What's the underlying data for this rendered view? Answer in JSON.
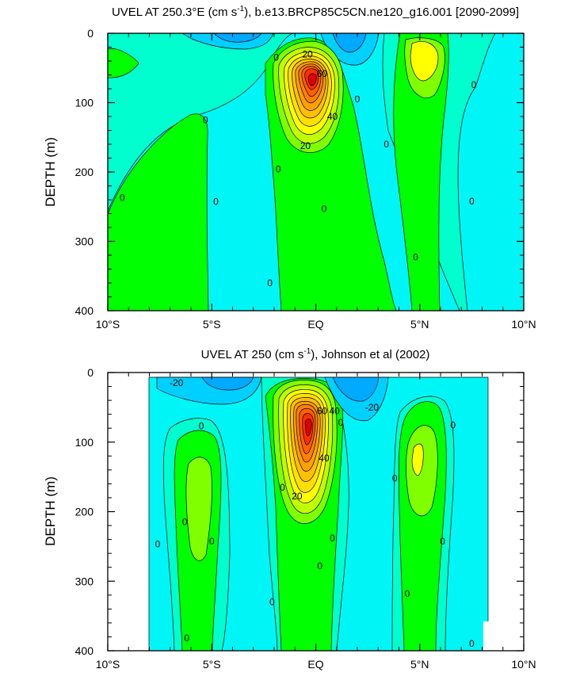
{
  "chart_data": [
    {
      "type": "contour",
      "title": "UVEL AT 250.3°E (cm s",
      "title_sup": "-1",
      "title_rest": "), b.e13.BRCP85C5CN.ne120_g16.001 [2090-2099]",
      "ylabel": "DEPTH (m)",
      "x_ticks": [
        "10°S",
        "5°S",
        "EQ",
        "5°N",
        "10°N"
      ],
      "x_range": [
        -10,
        10
      ],
      "y_ticks": [
        "0",
        "100",
        "200",
        "300",
        "400"
      ],
      "y_range": [
        0,
        400
      ],
      "y_inverted": true,
      "contour_interval": 10,
      "contour_labels": [
        {
          "text": "0",
          "lat": -9.3,
          "depth": 237
        },
        {
          "text": "0",
          "lat": -5.3,
          "depth": 125
        },
        {
          "text": "0",
          "lat": -4.8,
          "depth": 243
        },
        {
          "text": "0",
          "lat": -2.2,
          "depth": 360
        },
        {
          "text": "0",
          "lat": -1.9,
          "depth": 35
        },
        {
          "text": "0",
          "lat": -1.8,
          "depth": 196
        },
        {
          "text": "0",
          "lat": 0.4,
          "depth": 253
        },
        {
          "text": "0",
          "lat": 2.0,
          "depth": 95
        },
        {
          "text": "0",
          "lat": 3.4,
          "depth": 160
        },
        {
          "text": "0",
          "lat": 4.8,
          "depth": 323
        },
        {
          "text": "0",
          "lat": 7.5,
          "depth": 242
        },
        {
          "text": "0",
          "lat": 7.6,
          "depth": 74
        },
        {
          "text": "20",
          "lat": -0.4,
          "depth": 30
        },
        {
          "text": "60",
          "lat": 0.3,
          "depth": 58
        },
        {
          "text": "40",
          "lat": 0.8,
          "depth": 120
        },
        {
          "text": "20",
          "lat": -0.5,
          "depth": 162
        }
      ],
      "features": [
        {
          "type": "maximum",
          "lat": -0.1,
          "depth": 78,
          "value": 100
        },
        {
          "type": "maximum",
          "lat": 5.5,
          "depth": 35,
          "value": 25
        },
        {
          "type": "minimum",
          "lat": -4.0,
          "depth": 5,
          "value": -20
        },
        {
          "type": "minimum",
          "lat": 1.5,
          "depth": 5,
          "value": -15
        }
      ]
    },
    {
      "type": "contour",
      "title": "UVEL AT 250 (cm s",
      "title_sup": "-1",
      "title_rest": "), Johnson et al (2002)",
      "ylabel": "DEPTH (m)",
      "x_ticks": [
        "10°S",
        "5°S",
        "EQ",
        "5°N",
        "10°N"
      ],
      "x_range": [
        -10,
        10
      ],
      "y_ticks": [
        "0",
        "100",
        "200",
        "300",
        "400"
      ],
      "y_range": [
        0,
        400
      ],
      "y_inverted": true,
      "data_lat_range": [
        -8,
        8.2
      ],
      "contour_interval": 10,
      "contour_labels": [
        {
          "text": "-20",
          "lat": -6.7,
          "depth": 15
        },
        {
          "text": "0",
          "lat": -5.5,
          "depth": 77
        },
        {
          "text": "0",
          "lat": -6.3,
          "depth": 215
        },
        {
          "text": "0",
          "lat": -7.6,
          "depth": 247
        },
        {
          "text": "0",
          "lat": -5.0,
          "depth": 243
        },
        {
          "text": "0",
          "lat": -6.2,
          "depth": 382
        },
        {
          "text": "0",
          "lat": -1.6,
          "depth": 165
        },
        {
          "text": "0",
          "lat": -2.1,
          "depth": 330
        },
        {
          "text": "0",
          "lat": 1.2,
          "depth": 72
        },
        {
          "text": "0",
          "lat": 0.8,
          "depth": 238
        },
        {
          "text": "0",
          "lat": 0.2,
          "depth": 278
        },
        {
          "text": "0",
          "lat": 3.8,
          "depth": 152
        },
        {
          "text": "0",
          "lat": 4.4,
          "depth": 318
        },
        {
          "text": "0",
          "lat": 6.1,
          "depth": 243
        },
        {
          "text": "0",
          "lat": 6.6,
          "depth": 76
        },
        {
          "text": "0",
          "lat": 7.5,
          "depth": 390
        },
        {
          "text": "-20",
          "lat": 2.7,
          "depth": 50
        },
        {
          "text": "60",
          "lat": 0.3,
          "depth": 55
        },
        {
          "text": "40",
          "lat": 0.9,
          "depth": 55
        },
        {
          "text": "40",
          "lat": 0.4,
          "depth": 123
        },
        {
          "text": "20",
          "lat": -0.9,
          "depth": 178
        }
      ],
      "features": [
        {
          "type": "maximum",
          "lat": -0.3,
          "depth": 72,
          "value": 100
        },
        {
          "type": "maximum",
          "lat": 5.0,
          "depth": 125,
          "value": 25
        },
        {
          "type": "maximum",
          "lat": -5.2,
          "depth": 180,
          "value": 18
        },
        {
          "type": "minimum",
          "lat": -4.5,
          "depth": 10,
          "value": -20
        },
        {
          "type": "minimum",
          "lat": 2.1,
          "depth": 15,
          "value": -30
        }
      ]
    }
  ]
}
